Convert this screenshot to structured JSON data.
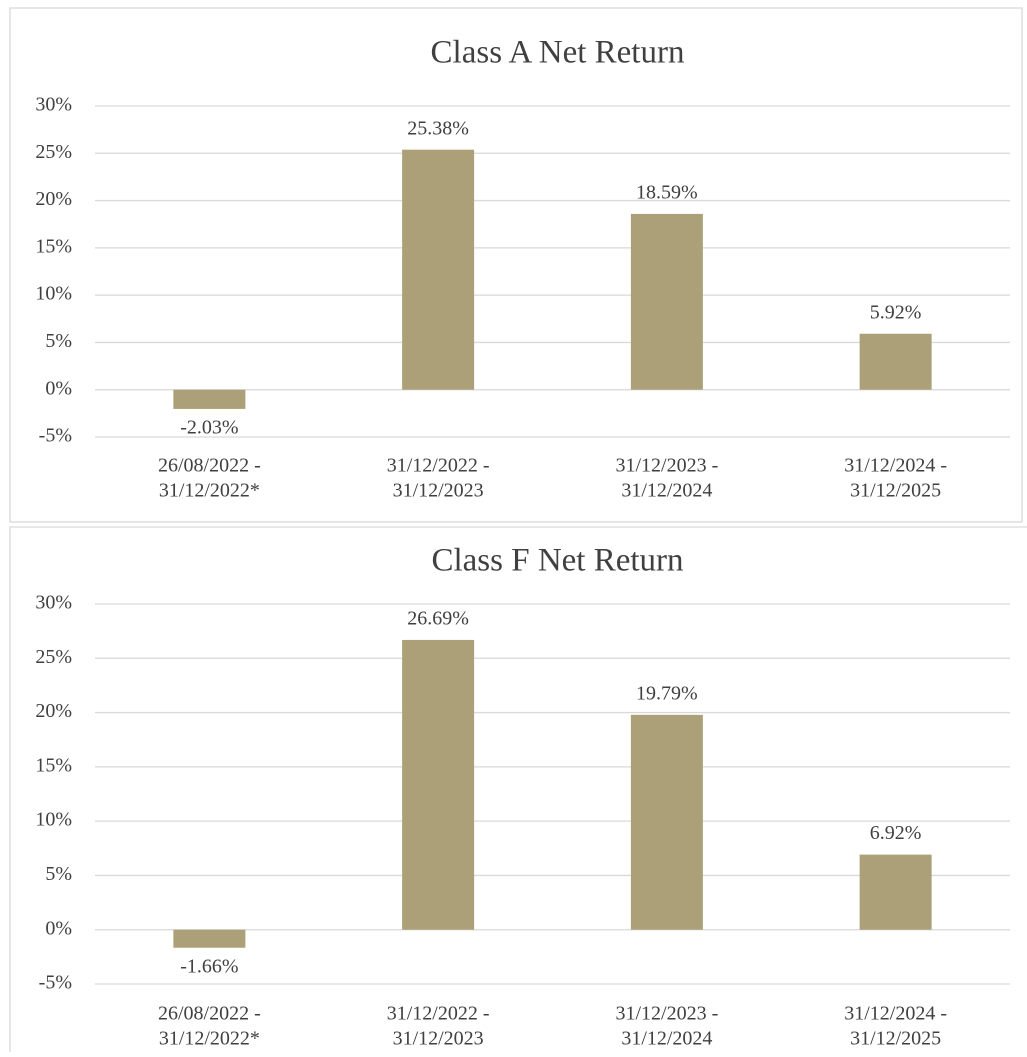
{
  "chart_data": [
    {
      "type": "bar",
      "title": "Class A Net Return",
      "categories": [
        [
          "26/08/2022 -",
          "31/12/2022*"
        ],
        [
          "31/12/2022 -",
          "31/12/2023"
        ],
        [
          "31/12/2023 -",
          "31/12/2024"
        ],
        [
          "31/12/2024 -",
          "31/12/2025"
        ]
      ],
      "values": [
        -2.03,
        25.38,
        18.59,
        5.92
      ],
      "value_labels": [
        "-2.03%",
        "25.38%",
        "18.59%",
        "5.92%"
      ],
      "color": "#aba077",
      "ylim": [
        -5,
        30
      ],
      "yticks": [
        {
          "value": -5,
          "label": "-5%"
        },
        {
          "value": 0,
          "label": "0%"
        },
        {
          "value": 5,
          "label": "5%"
        },
        {
          "value": 10,
          "label": "10%"
        },
        {
          "value": 15,
          "label": "15%"
        },
        {
          "value": 20,
          "label": "20%"
        },
        {
          "value": 25,
          "label": "25%"
        },
        {
          "value": 30,
          "label": "30%"
        }
      ],
      "grid": true
    },
    {
      "type": "bar",
      "title": "Class F Net Return",
      "categories": [
        [
          "26/08/2022 -",
          "31/12/2022*"
        ],
        [
          "31/12/2022 -",
          "31/12/2023"
        ],
        [
          "31/12/2023 -",
          "31/12/2024"
        ],
        [
          "31/12/2024 -",
          "31/12/2025"
        ]
      ],
      "values": [
        -1.66,
        26.69,
        19.79,
        6.92
      ],
      "value_labels": [
        "-1.66%",
        "26.69%",
        "19.79%",
        "6.92%"
      ],
      "color": "#aba077",
      "ylim": [
        -5,
        30
      ],
      "yticks": [
        {
          "value": -5,
          "label": "-5%"
        },
        {
          "value": 0,
          "label": "0%"
        },
        {
          "value": 5,
          "label": "5%"
        },
        {
          "value": 10,
          "label": "10%"
        },
        {
          "value": 15,
          "label": "15%"
        },
        {
          "value": 20,
          "label": "20%"
        },
        {
          "value": 25,
          "label": "25%"
        },
        {
          "value": 30,
          "label": "30%"
        }
      ],
      "grid": true
    }
  ]
}
